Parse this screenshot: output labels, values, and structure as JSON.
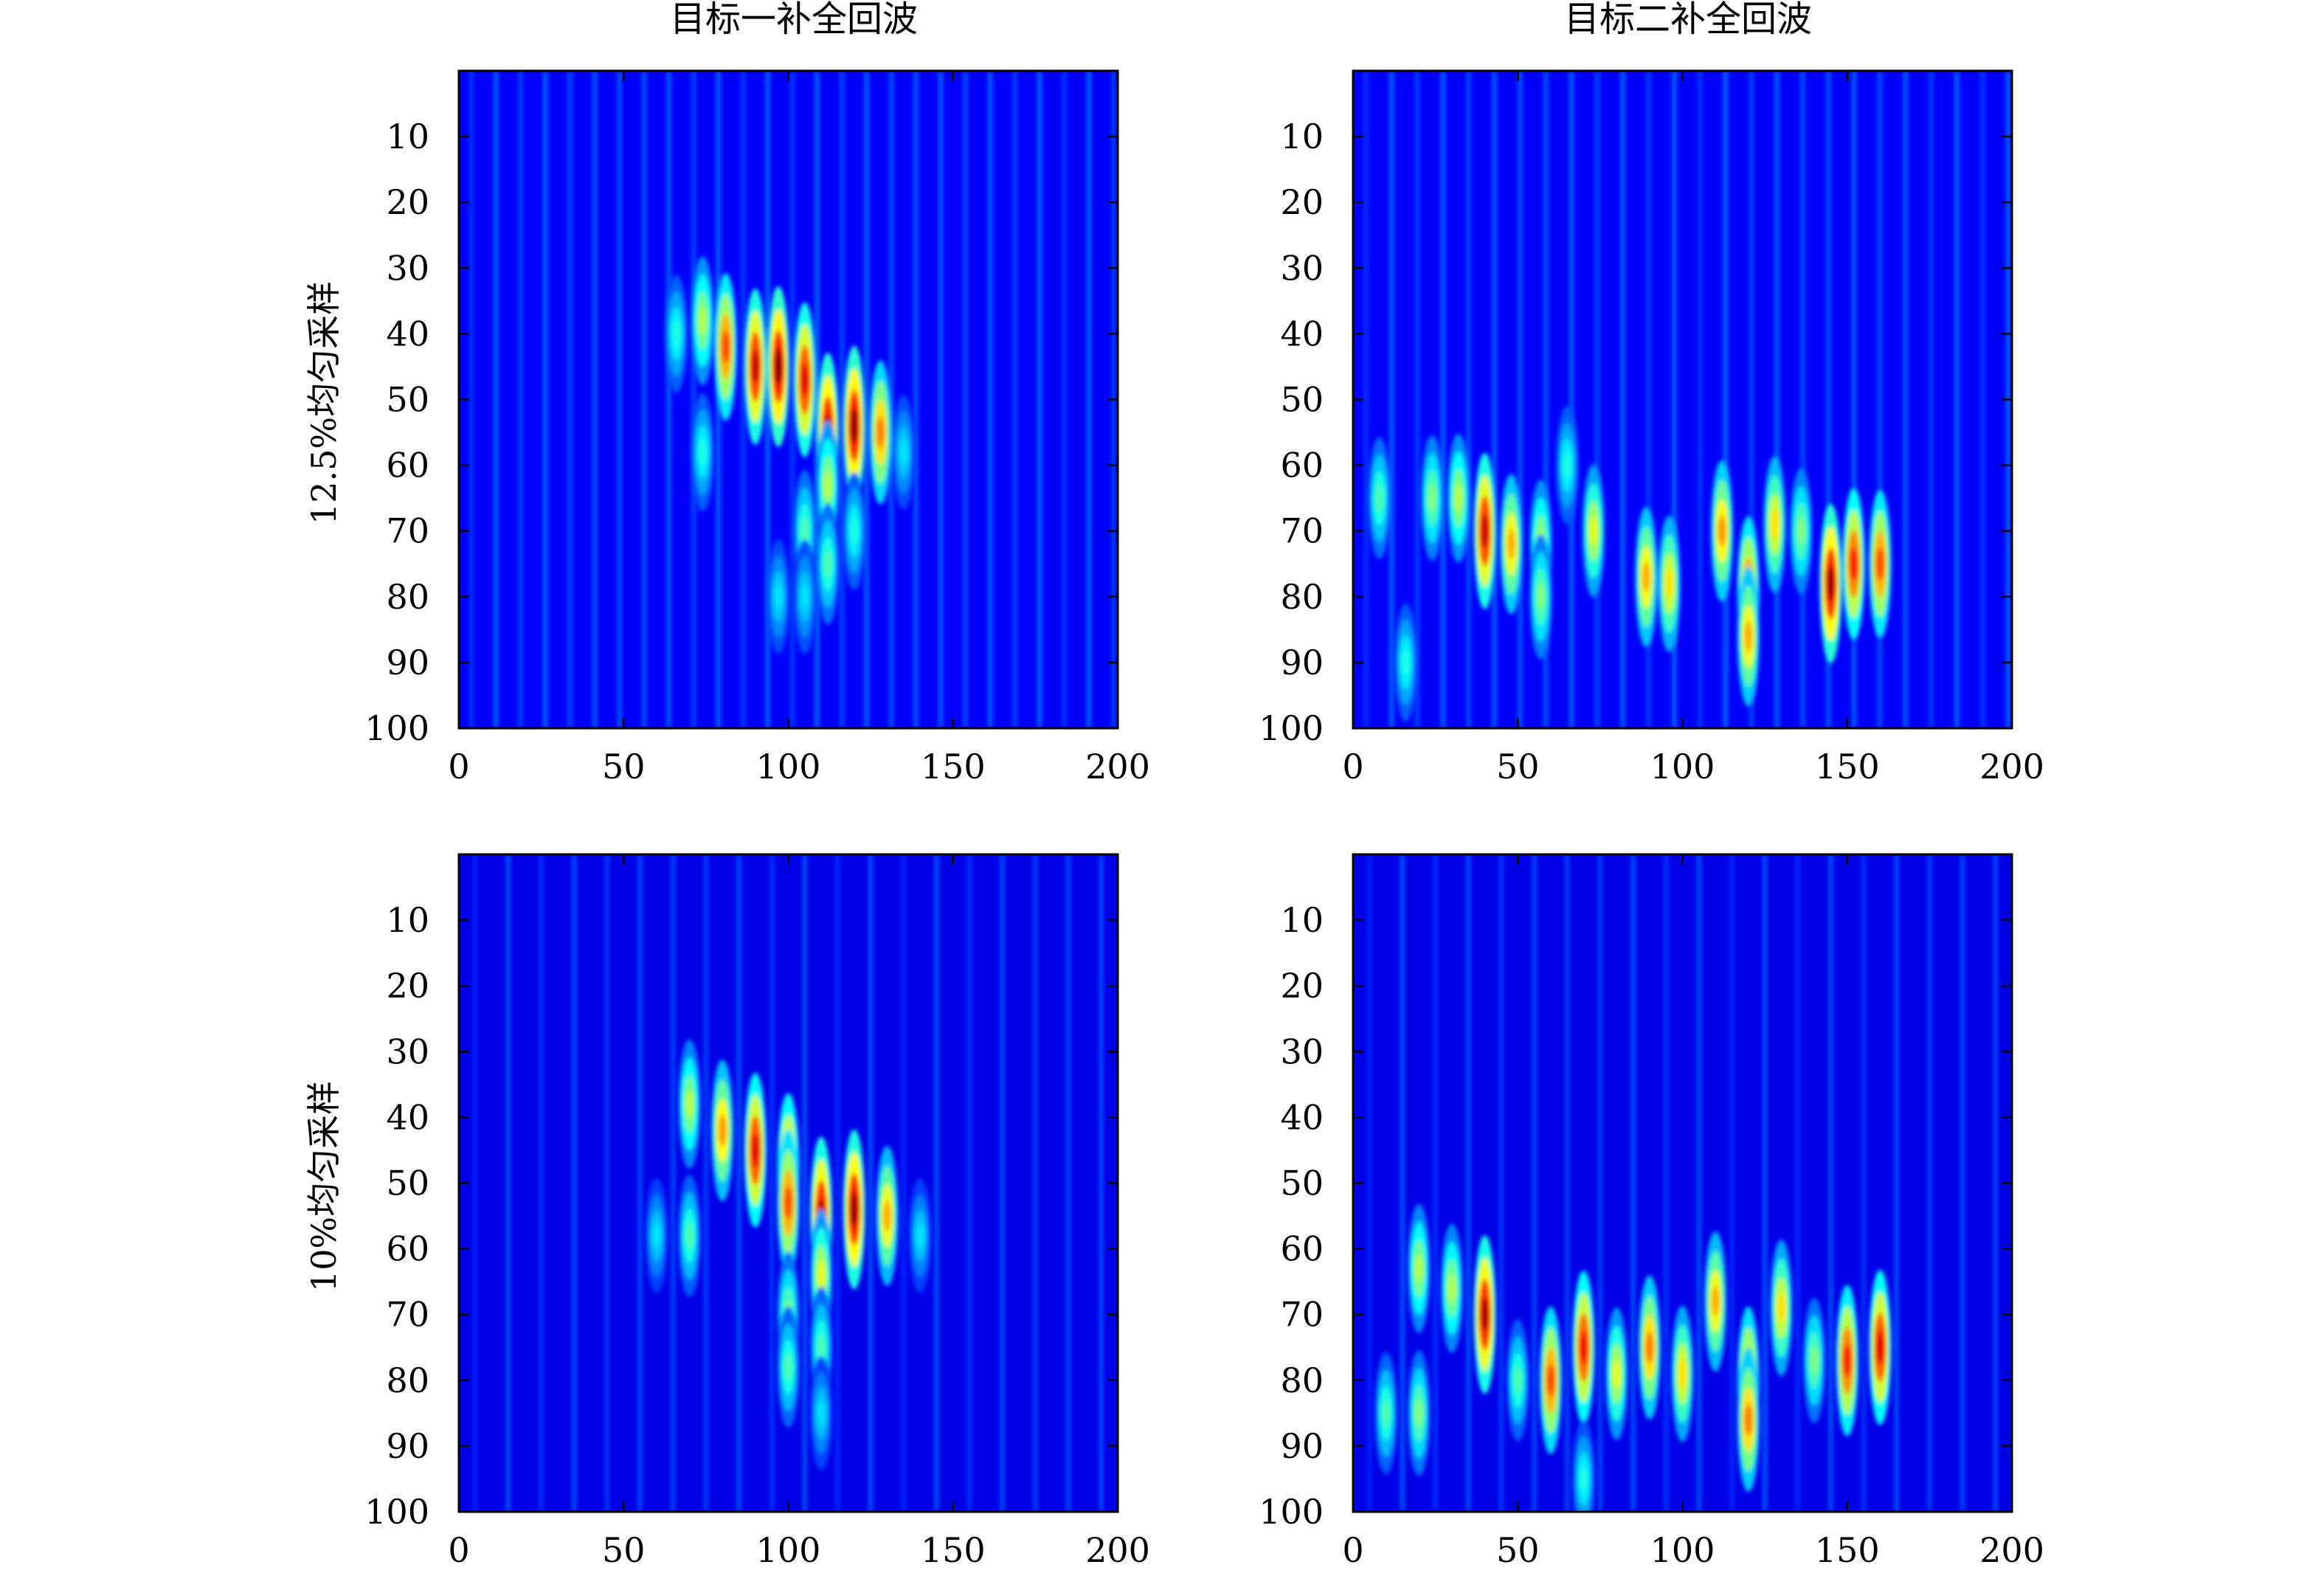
{
  "figure": {
    "column_titles": [
      "目标一补全回波",
      "目标二补全回波"
    ],
    "row_labels": [
      "12.5%均匀采样",
      "10%均匀采样"
    ]
  },
  "chart_data": [
    {
      "type": "heatmap",
      "title": "目标一补全回波",
      "ylabel": "12.5%均匀采样",
      "xlim": [
        0,
        200
      ],
      "ylim": [
        100,
        0
      ],
      "xticks": [
        0,
        50,
        100,
        150,
        200
      ],
      "yticks": [
        10,
        20,
        30,
        40,
        50,
        60,
        70,
        80,
        90,
        100
      ],
      "colormap": "jet",
      "column_spacing": 7.5,
      "background_level": 0.12,
      "hotspots": [
        {
          "x": 81,
          "y": 42,
          "v": 0.8
        },
        {
          "x": 90,
          "y": 45,
          "v": 0.92
        },
        {
          "x": 97,
          "y": 45,
          "v": 0.98
        },
        {
          "x": 105,
          "y": 47,
          "v": 0.9
        },
        {
          "x": 112,
          "y": 55,
          "v": 0.96
        },
        {
          "x": 120,
          "y": 54,
          "v": 0.97
        },
        {
          "x": 128,
          "y": 55,
          "v": 0.75
        },
        {
          "x": 74,
          "y": 38,
          "v": 0.55
        },
        {
          "x": 66,
          "y": 40,
          "v": 0.4
        },
        {
          "x": 112,
          "y": 63,
          "v": 0.55
        },
        {
          "x": 105,
          "y": 70,
          "v": 0.45
        },
        {
          "x": 112,
          "y": 75,
          "v": 0.45
        },
        {
          "x": 120,
          "y": 70,
          "v": 0.4
        },
        {
          "x": 97,
          "y": 80,
          "v": 0.35
        },
        {
          "x": 105,
          "y": 80,
          "v": 0.35
        },
        {
          "x": 74,
          "y": 58,
          "v": 0.4
        },
        {
          "x": 135,
          "y": 58,
          "v": 0.35
        }
      ]
    },
    {
      "type": "heatmap",
      "title": "目标二补全回波",
      "ylabel": "",
      "xlim": [
        0,
        200
      ],
      "ylim": [
        100,
        0
      ],
      "xticks": [
        0,
        50,
        100,
        150,
        200
      ],
      "yticks": [
        10,
        20,
        30,
        40,
        50,
        60,
        70,
        80,
        90,
        100
      ],
      "colormap": "jet",
      "column_spacing": 7.8,
      "background_level": 0.12,
      "hotspots": [
        {
          "x": 40,
          "y": 70,
          "v": 0.92
        },
        {
          "x": 48,
          "y": 72,
          "v": 0.7
        },
        {
          "x": 57,
          "y": 72,
          "v": 0.55
        },
        {
          "x": 73,
          "y": 70,
          "v": 0.6
        },
        {
          "x": 89,
          "y": 77,
          "v": 0.7
        },
        {
          "x": 96,
          "y": 78,
          "v": 0.65
        },
        {
          "x": 112,
          "y": 70,
          "v": 0.72
        },
        {
          "x": 120,
          "y": 79,
          "v": 0.8
        },
        {
          "x": 120,
          "y": 86,
          "v": 0.7
        },
        {
          "x": 128,
          "y": 69,
          "v": 0.65
        },
        {
          "x": 145,
          "y": 78,
          "v": 0.96
        },
        {
          "x": 152,
          "y": 75,
          "v": 0.85
        },
        {
          "x": 160,
          "y": 75,
          "v": 0.8
        },
        {
          "x": 24,
          "y": 65,
          "v": 0.5
        },
        {
          "x": 32,
          "y": 65,
          "v": 0.55
        },
        {
          "x": 8,
          "y": 65,
          "v": 0.45
        },
        {
          "x": 16,
          "y": 90,
          "v": 0.4
        },
        {
          "x": 57,
          "y": 80,
          "v": 0.5
        },
        {
          "x": 65,
          "y": 60,
          "v": 0.4
        },
        {
          "x": 136,
          "y": 70,
          "v": 0.5
        }
      ]
    },
    {
      "type": "heatmap",
      "title": "",
      "ylabel": "10%均匀采样",
      "xlim": [
        0,
        200
      ],
      "ylim": [
        100,
        0
      ],
      "xticks": [
        0,
        50,
        100,
        150,
        200
      ],
      "yticks": [
        10,
        20,
        30,
        40,
        50,
        60,
        70,
        80,
        90,
        100
      ],
      "colormap": "jet",
      "column_spacing": 10,
      "background_level": 0.1,
      "hotspots": [
        {
          "x": 80,
          "y": 42,
          "v": 0.72
        },
        {
          "x": 90,
          "y": 45,
          "v": 0.9
        },
        {
          "x": 100,
          "y": 48,
          "v": 0.88
        },
        {
          "x": 100,
          "y": 53,
          "v": 0.8
        },
        {
          "x": 110,
          "y": 55,
          "v": 0.95
        },
        {
          "x": 120,
          "y": 54,
          "v": 0.97
        },
        {
          "x": 130,
          "y": 55,
          "v": 0.7
        },
        {
          "x": 70,
          "y": 38,
          "v": 0.55
        },
        {
          "x": 110,
          "y": 64,
          "v": 0.6
        },
        {
          "x": 100,
          "y": 70,
          "v": 0.5
        },
        {
          "x": 110,
          "y": 75,
          "v": 0.45
        },
        {
          "x": 100,
          "y": 78,
          "v": 0.45
        },
        {
          "x": 60,
          "y": 58,
          "v": 0.35
        },
        {
          "x": 70,
          "y": 58,
          "v": 0.45
        },
        {
          "x": 140,
          "y": 58,
          "v": 0.35
        },
        {
          "x": 110,
          "y": 85,
          "v": 0.35
        }
      ]
    },
    {
      "type": "heatmap",
      "title": "",
      "ylabel": "",
      "xlim": [
        0,
        200
      ],
      "ylim": [
        100,
        0
      ],
      "xticks": [
        0,
        50,
        100,
        150,
        200
      ],
      "yticks": [
        10,
        20,
        30,
        40,
        50,
        60,
        70,
        80,
        90,
        100
      ],
      "colormap": "jet",
      "column_spacing": 10,
      "background_level": 0.1,
      "hotspots": [
        {
          "x": 40,
          "y": 70,
          "v": 0.95
        },
        {
          "x": 60,
          "y": 80,
          "v": 0.8
        },
        {
          "x": 70,
          "y": 75,
          "v": 0.88
        },
        {
          "x": 80,
          "y": 79,
          "v": 0.6
        },
        {
          "x": 90,
          "y": 75,
          "v": 0.75
        },
        {
          "x": 100,
          "y": 79,
          "v": 0.65
        },
        {
          "x": 110,
          "y": 68,
          "v": 0.7
        },
        {
          "x": 120,
          "y": 80,
          "v": 0.8
        },
        {
          "x": 120,
          "y": 86,
          "v": 0.75
        },
        {
          "x": 130,
          "y": 69,
          "v": 0.65
        },
        {
          "x": 150,
          "y": 77,
          "v": 0.85
        },
        {
          "x": 160,
          "y": 75,
          "v": 0.9
        },
        {
          "x": 20,
          "y": 63,
          "v": 0.55
        },
        {
          "x": 30,
          "y": 66,
          "v": 0.55
        },
        {
          "x": 10,
          "y": 85,
          "v": 0.45
        },
        {
          "x": 20,
          "y": 85,
          "v": 0.5
        },
        {
          "x": 50,
          "y": 80,
          "v": 0.45
        },
        {
          "x": 140,
          "y": 77,
          "v": 0.5
        },
        {
          "x": 70,
          "y": 95,
          "v": 0.4
        }
      ]
    }
  ]
}
